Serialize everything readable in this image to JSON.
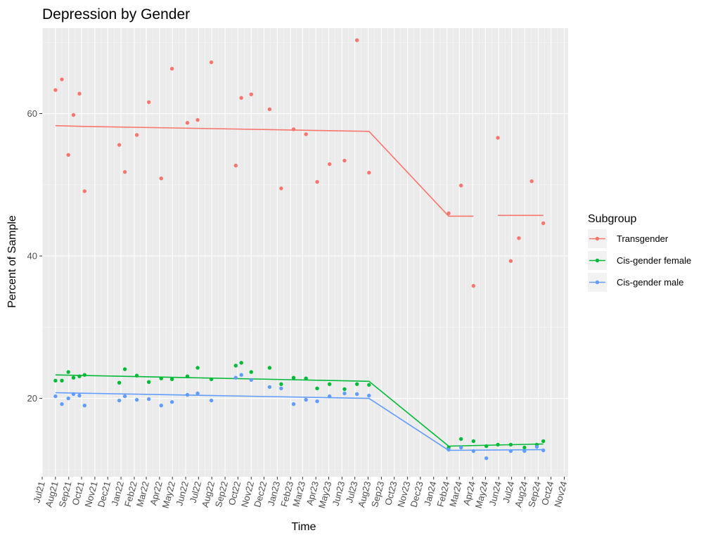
{
  "chart_data": {
    "type": "scatter",
    "title": "Depression by Gender",
    "xlabel": "Time",
    "ylabel": "Percent of Sample",
    "ylim": [
      9,
      72
    ],
    "y_ticks": [
      20,
      40,
      60
    ],
    "x_ticks": [
      "Jul21",
      "Aug21",
      "Sep21",
      "Oct21",
      "Nov21",
      "Dec21",
      "Jan22",
      "Feb22",
      "Mar22",
      "Apr22",
      "May22",
      "Jun22",
      "Jul22",
      "Aug22",
      "Sep22",
      "Oct22",
      "Nov22",
      "Dec22",
      "Jan23",
      "Feb23",
      "Mar23",
      "Apr23",
      "May23",
      "Jun23",
      "Jul23",
      "Aug23",
      "Sep23",
      "Oct23",
      "Nov23",
      "Dec23",
      "Jan24",
      "Feb24",
      "Mar24",
      "Apr24",
      "May24",
      "Jun24",
      "Jul24",
      "Aug24",
      "Sep24",
      "Oct24",
      "Nov24"
    ],
    "xlim": [
      "2021-07-01",
      "2024-11-10"
    ],
    "grid": true,
    "legend": {
      "title": "Subgroup",
      "position": "right",
      "entries": [
        "Transgender",
        "Cis-gender female",
        "Cis-gender male"
      ]
    },
    "series": [
      {
        "name": "Transgender",
        "color": "#F8766D",
        "points": [
          [
            "2021-08-01",
            63.3
          ],
          [
            "2021-08-16",
            64.8
          ],
          [
            "2021-08-31",
            54.2
          ],
          [
            "2021-09-12",
            59.8
          ],
          [
            "2021-09-26",
            62.8
          ],
          [
            "2021-10-08",
            49.1
          ],
          [
            "2021-12-28",
            55.6
          ],
          [
            "2022-01-10",
            51.8
          ],
          [
            "2022-02-07",
            57.0
          ],
          [
            "2022-03-07",
            61.6
          ],
          [
            "2022-04-05",
            50.9
          ],
          [
            "2022-04-30",
            66.3
          ],
          [
            "2022-06-05",
            58.7
          ],
          [
            "2022-06-29",
            59.1
          ],
          [
            "2022-07-31",
            67.2
          ],
          [
            "2022-09-26",
            52.7
          ],
          [
            "2022-10-09",
            62.2
          ],
          [
            "2022-11-01",
            62.7
          ],
          [
            "2022-12-14",
            60.6
          ],
          [
            "2023-01-10",
            49.5
          ],
          [
            "2023-02-08",
            57.8
          ],
          [
            "2023-03-09",
            57.1
          ],
          [
            "2023-04-04",
            50.4
          ],
          [
            "2023-05-03",
            52.9
          ],
          [
            "2023-06-07",
            53.4
          ],
          [
            "2023-07-06",
            70.3
          ],
          [
            "2023-08-03",
            51.7
          ],
          [
            "2024-02-05",
            46.0
          ],
          [
            "2024-03-05",
            49.9
          ],
          [
            "2024-04-03",
            35.8
          ],
          [
            "2024-05-30",
            56.6
          ],
          [
            "2024-06-29",
            39.3
          ],
          [
            "2024-07-18",
            42.5
          ],
          [
            "2024-08-17",
            50.5
          ],
          [
            "2024-09-13",
            44.6
          ]
        ],
        "trend": [
          [
            [
              "2021-08-01",
              58.3
            ],
            [
              "2021-10-08",
              58.2
            ],
            [
              "2023-08-03",
              57.5
            ],
            [
              "2024-02-05",
              45.6
            ],
            [
              "2024-04-03",
              45.6
            ]
          ],
          [
            [
              "2024-05-30",
              45.7
            ],
            [
              "2024-09-13",
              45.7
            ]
          ]
        ]
      },
      {
        "name": "Cis-gender female",
        "color": "#00BA38",
        "points": [
          [
            "2021-08-01",
            22.5
          ],
          [
            "2021-08-16",
            22.5
          ],
          [
            "2021-08-31",
            23.7
          ],
          [
            "2021-09-12",
            22.9
          ],
          [
            "2021-09-26",
            23.1
          ],
          [
            "2021-10-08",
            23.3
          ],
          [
            "2021-12-28",
            22.2
          ],
          [
            "2022-01-10",
            24.1
          ],
          [
            "2022-02-07",
            23.2
          ],
          [
            "2022-03-07",
            22.3
          ],
          [
            "2022-04-05",
            22.8
          ],
          [
            "2022-04-30",
            22.7
          ],
          [
            "2022-06-05",
            23.1
          ],
          [
            "2022-06-29",
            24.3
          ],
          [
            "2022-07-31",
            22.7
          ],
          [
            "2022-09-26",
            24.6
          ],
          [
            "2022-10-09",
            25.0
          ],
          [
            "2022-11-01",
            23.7
          ],
          [
            "2022-12-14",
            24.3
          ],
          [
            "2023-01-10",
            22.0
          ],
          [
            "2023-02-08",
            22.9
          ],
          [
            "2023-03-09",
            22.8
          ],
          [
            "2023-04-04",
            21.4
          ],
          [
            "2023-05-03",
            22.0
          ],
          [
            "2023-06-07",
            21.3
          ],
          [
            "2023-07-06",
            22.0
          ],
          [
            "2023-08-03",
            21.9
          ],
          [
            "2024-02-05",
            13.1
          ],
          [
            "2024-03-05",
            14.3
          ],
          [
            "2024-04-03",
            14.0
          ],
          [
            "2024-05-03",
            13.3
          ],
          [
            "2024-05-30",
            13.5
          ],
          [
            "2024-06-29",
            13.5
          ],
          [
            "2024-07-31",
            13.1
          ],
          [
            "2024-08-29",
            13.5
          ],
          [
            "2024-09-13",
            14.0
          ]
        ],
        "trend": [
          [
            [
              "2021-08-01",
              23.3
            ],
            [
              "2023-08-03",
              22.4
            ],
            [
              "2024-02-05",
              13.3
            ],
            [
              "2024-09-13",
              13.6
            ]
          ]
        ]
      },
      {
        "name": "Cis-gender male",
        "color": "#619CFF",
        "points": [
          [
            "2021-08-01",
            20.3
          ],
          [
            "2021-08-16",
            19.2
          ],
          [
            "2021-08-31",
            20.0
          ],
          [
            "2021-09-12",
            20.6
          ],
          [
            "2021-09-26",
            20.4
          ],
          [
            "2021-10-08",
            19.0
          ],
          [
            "2021-12-28",
            19.7
          ],
          [
            "2022-01-10",
            20.3
          ],
          [
            "2022-02-07",
            19.8
          ],
          [
            "2022-03-07",
            19.9
          ],
          [
            "2022-04-05",
            19.0
          ],
          [
            "2022-04-30",
            19.5
          ],
          [
            "2022-06-05",
            20.5
          ],
          [
            "2022-06-29",
            20.7
          ],
          [
            "2022-07-31",
            19.7
          ],
          [
            "2022-09-26",
            22.9
          ],
          [
            "2022-10-09",
            23.3
          ],
          [
            "2022-11-01",
            22.6
          ],
          [
            "2022-12-14",
            21.6
          ],
          [
            "2023-01-10",
            21.4
          ],
          [
            "2023-02-08",
            19.2
          ],
          [
            "2023-03-09",
            19.8
          ],
          [
            "2023-04-04",
            19.6
          ],
          [
            "2023-05-03",
            20.3
          ],
          [
            "2023-06-07",
            20.7
          ],
          [
            "2023-07-06",
            20.6
          ],
          [
            "2023-08-03",
            20.4
          ],
          [
            "2024-02-05",
            12.8
          ],
          [
            "2024-03-05",
            13.1
          ],
          [
            "2024-04-03",
            12.6
          ],
          [
            "2024-05-03",
            11.6
          ],
          [
            "2024-06-29",
            12.6
          ],
          [
            "2024-07-31",
            12.6
          ],
          [
            "2024-08-29",
            13.2
          ],
          [
            "2024-09-13",
            12.7
          ]
        ],
        "trend": [
          [
            [
              "2021-08-01",
              20.8
            ],
            [
              "2023-08-03",
              20.0
            ],
            [
              "2024-02-05",
              12.7
            ],
            [
              "2024-09-13",
              12.8
            ]
          ]
        ]
      }
    ]
  }
}
